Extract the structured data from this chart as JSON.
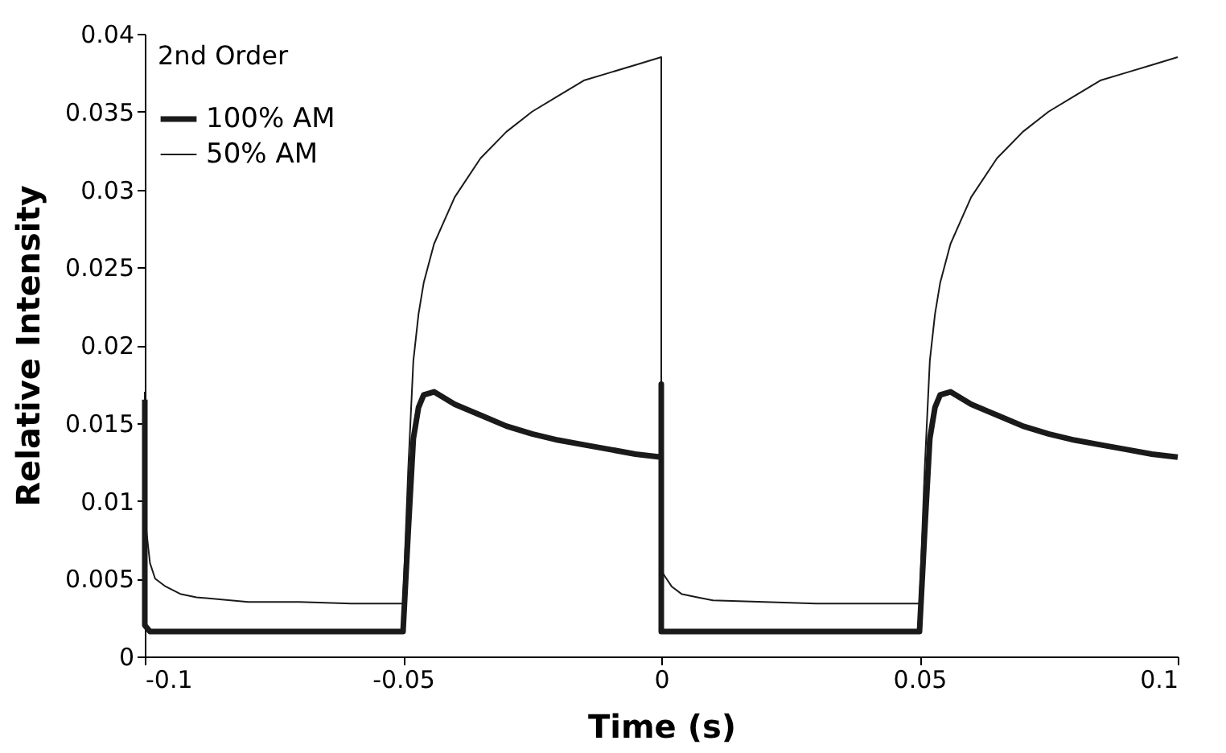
{
  "chart_data": {
    "type": "line",
    "xlabel": "Time (s)",
    "ylabel": "Relative Intensity",
    "annotations": [
      "2nd Order"
    ],
    "x": [
      -0.1,
      -0.1,
      -0.099,
      -0.098,
      -0.096,
      -0.093,
      -0.09,
      -0.08,
      -0.07,
      -0.06,
      -0.05,
      -0.049,
      -0.048,
      -0.047,
      -0.046,
      -0.044,
      -0.042,
      -0.04,
      -0.035,
      -0.03,
      -0.025,
      -0.02,
      -0.015,
      -0.01,
      -0.005,
      0,
      0,
      0,
      0.001,
      0.002,
      0.004,
      0.007,
      0.01,
      0.02,
      0.03,
      0.04,
      0.05,
      0.051,
      0.052,
      0.053,
      0.054,
      0.056,
      0.058,
      0.06,
      0.065,
      0.07,
      0.075,
      0.08,
      0.085,
      0.09,
      0.095,
      0.1
    ],
    "series": [
      {
        "name": "100% AM",
        "color": "#1a1a1a",
        "values": [
          0.0165,
          0.002,
          0.0016,
          0.0016,
          0.0016,
          0.0016,
          0.0016,
          0.0016,
          0.0016,
          0.0016,
          0.0016,
          0.008,
          0.014,
          0.016,
          0.0168,
          0.017,
          0.0166,
          0.0162,
          0.0155,
          0.0148,
          0.0143,
          0.0139,
          0.0136,
          0.0133,
          0.013,
          0.0128,
          0.0175,
          0.0016,
          0.0016,
          0.0016,
          0.0016,
          0.0016,
          0.0016,
          0.0016,
          0.0016,
          0.0016,
          0.0016,
          0.008,
          0.014,
          0.016,
          0.0168,
          0.017,
          0.0166,
          0.0162,
          0.0155,
          0.0148,
          0.0143,
          0.0139,
          0.0136,
          0.0133,
          0.013,
          0.0128
        ]
      },
      {
        "name": "50% AM",
        "color": "#1a1a1a",
        "values": [
          0.017,
          0.009,
          0.006,
          0.005,
          0.0045,
          0.004,
          0.0038,
          0.0035,
          0.0035,
          0.0034,
          0.0034,
          0.012,
          0.019,
          0.022,
          0.024,
          0.0265,
          0.028,
          0.0295,
          0.032,
          0.0337,
          0.035,
          0.036,
          0.037,
          0.0375,
          0.038,
          0.0385,
          0.007,
          0.0055,
          0.005,
          0.0045,
          0.004,
          0.0038,
          0.0036,
          0.0035,
          0.0034,
          0.0034,
          0.0034,
          0.012,
          0.019,
          0.022,
          0.024,
          0.0265,
          0.028,
          0.0295,
          0.032,
          0.0337,
          0.035,
          0.036,
          0.037,
          0.0375,
          0.038,
          0.0385
        ]
      }
    ],
    "xlim": [
      -0.1,
      0.1
    ],
    "xticks": [
      -0.1,
      -0.05,
      0,
      0.05,
      0.1
    ],
    "ylim": [
      0,
      0.04
    ],
    "yticks": [
      0,
      0.005,
      0.01,
      0.015,
      0.02,
      0.025,
      0.03,
      0.035,
      0.04
    ],
    "grid": false,
    "legend": "top left",
    "marker": "none",
    "line_style": "solid"
  }
}
